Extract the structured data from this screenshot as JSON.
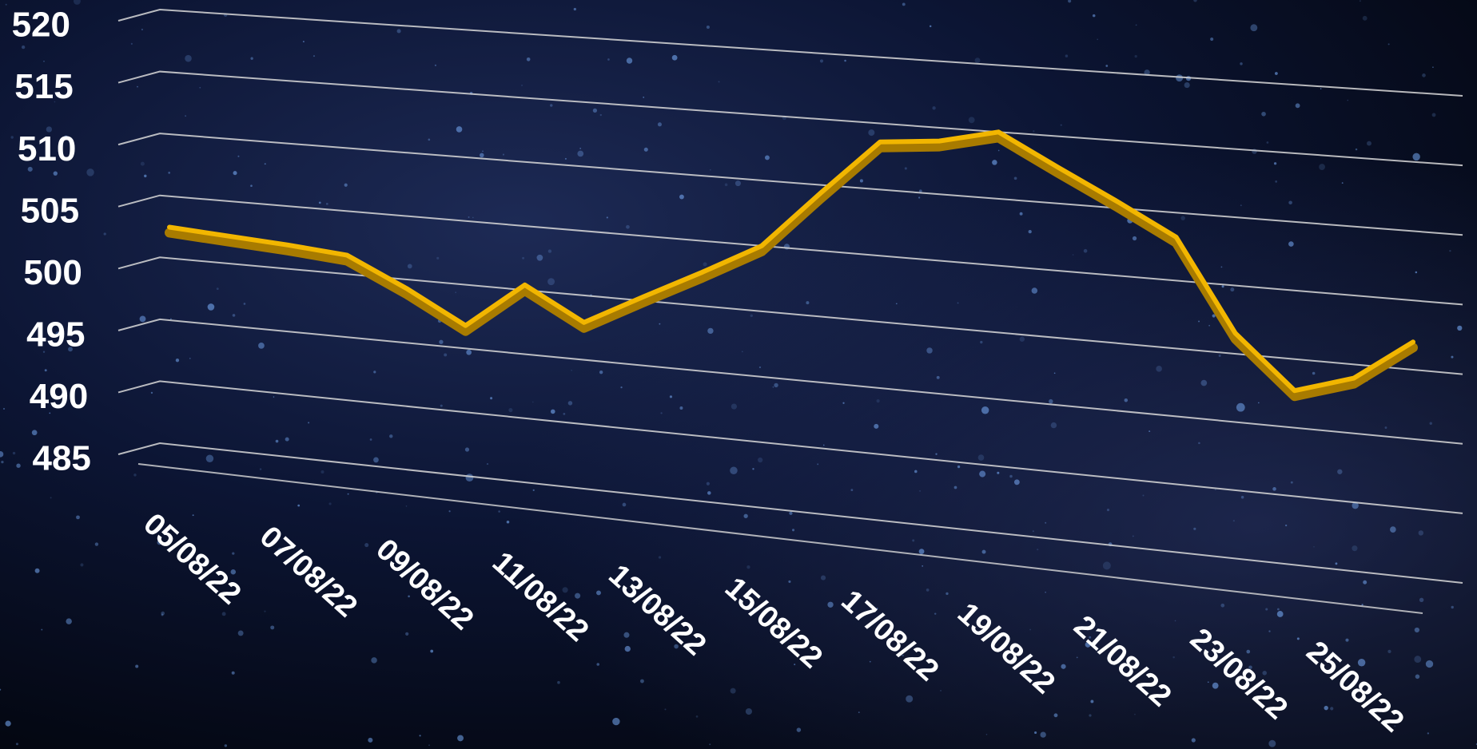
{
  "chart_data": {
    "type": "line",
    "categories": [
      "05/08/22",
      null,
      "07/08/22",
      null,
      "09/08/22",
      null,
      "11/08/22",
      null,
      "13/08/22",
      null,
      "15/08/22",
      null,
      "17/08/22",
      null,
      "19/08/22",
      null,
      "21/08/22",
      null,
      "23/08/22",
      null,
      "25/08/22",
      null
    ],
    "series": [
      {
        "name": null,
        "color": "#f2b600",
        "values": [
          502.5,
          502.2,
          501.9,
          501.5,
          499.3,
          496.8,
          500.4,
          497.9,
          500.3,
          502.6,
          505,
          509.4,
          513.6,
          514,
          515,
          512.7,
          510.5,
          508.2,
          501.5,
          497.7,
          499,
          502
        ]
      }
    ],
    "ylim": [
      485,
      520
    ],
    "yticks": [
      485,
      490,
      495,
      500,
      505,
      510,
      515,
      520
    ],
    "grid": true
  }
}
